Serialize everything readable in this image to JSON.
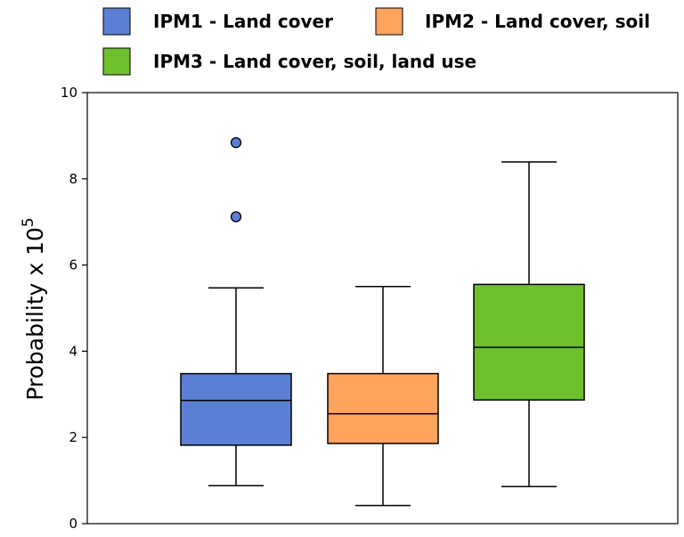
{
  "chart_data": {
    "type": "box",
    "title": "",
    "xlabel": "",
    "ylabel": "Probability x 10",
    "ylabel_superscript": "5",
    "ylim": [
      0,
      10
    ],
    "yticks": [
      "0",
      "2",
      "4",
      "6",
      "8",
      "10"
    ],
    "grid": false,
    "legend_position": "top",
    "series": [
      {
        "name": "IPM1 - Land cover",
        "color": "#5b7fd4",
        "whisker_low": 0.88,
        "q1": 1.82,
        "median": 2.86,
        "q3": 3.48,
        "whisker_high": 5.47,
        "outliers": [
          7.12,
          8.84
        ]
      },
      {
        "name": "IPM2 - Land cover, soil",
        "color": "#ffa45c",
        "whisker_low": 0.42,
        "q1": 1.86,
        "median": 2.55,
        "q3": 3.48,
        "whisker_high": 5.5,
        "outliers": []
      },
      {
        "name": "IPM3 - Land cover, soil, land use",
        "color": "#6fc02d",
        "whisker_low": 0.86,
        "q1": 2.87,
        "median": 4.09,
        "q3": 5.55,
        "whisker_high": 8.39,
        "outliers": []
      }
    ]
  }
}
